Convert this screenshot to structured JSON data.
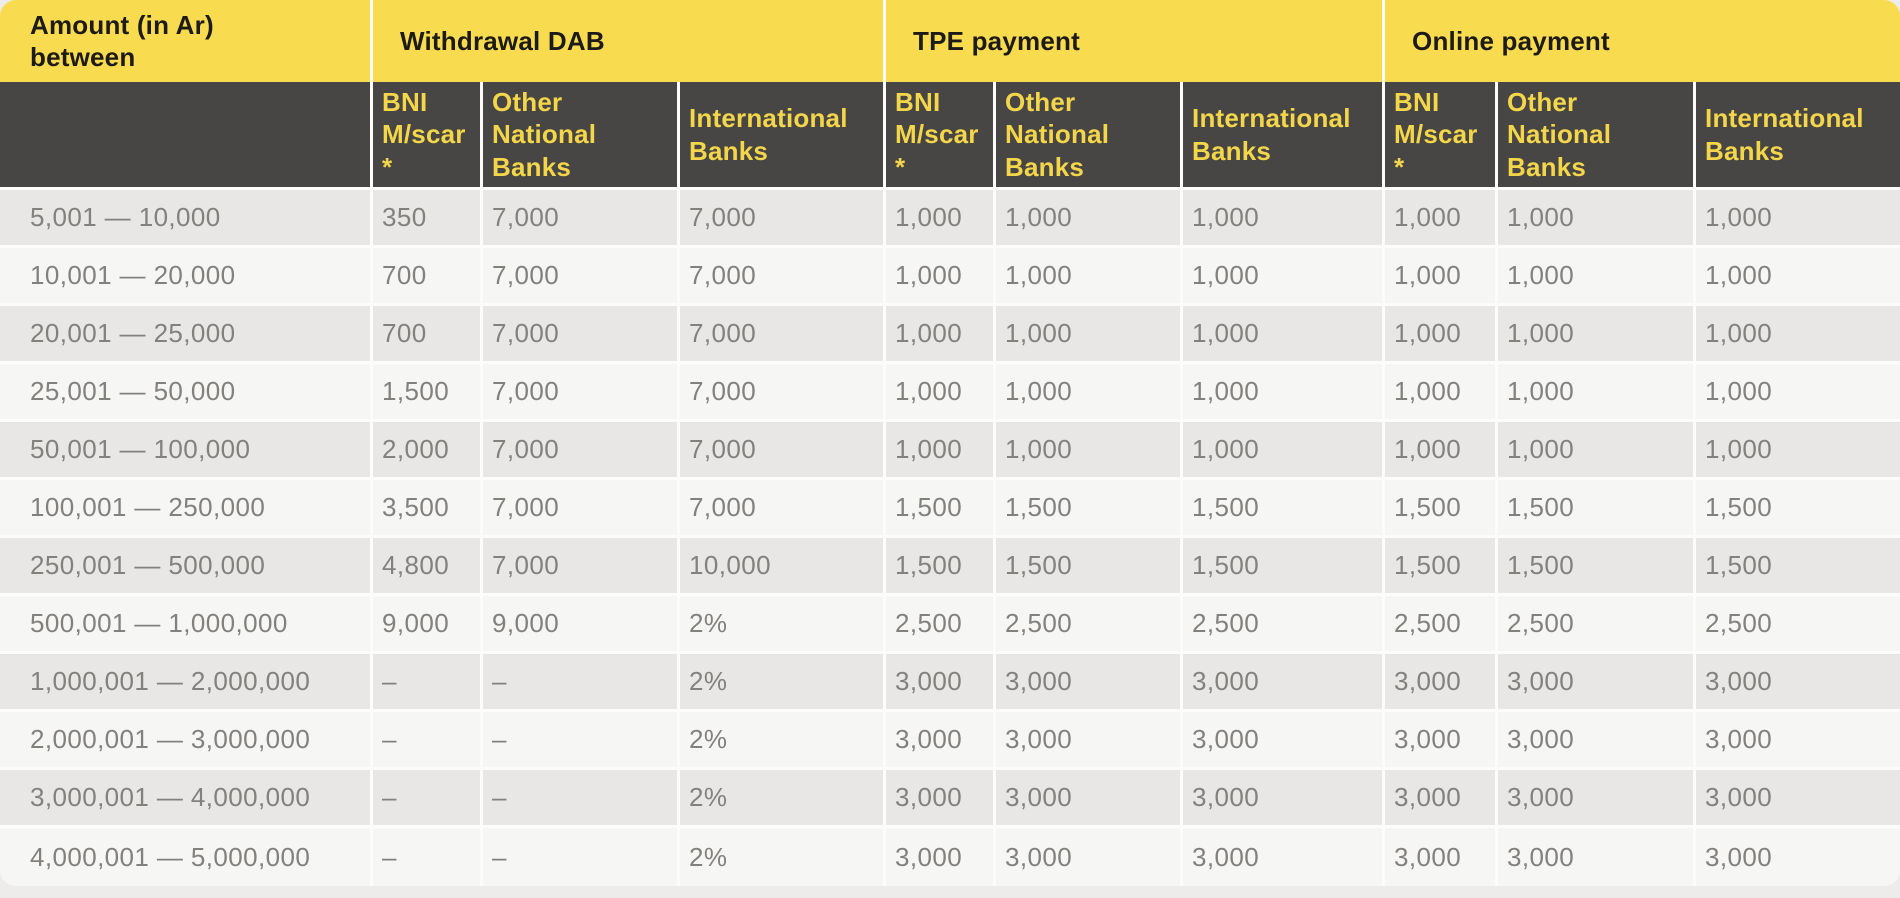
{
  "colors": {
    "header_yellow": "#F9DB4F",
    "header_dark": "#484644",
    "header_dark_text": "#F4D64B",
    "header_yellow_text": "#1C1B18",
    "row_odd_bg": "#E8E7E6",
    "row_even_bg": "#F6F6F5",
    "cell_text": "#83817E",
    "separator": "#FCFCFB",
    "page_background": "#EDECEB"
  },
  "header": {
    "amount_label": "Amount (in Ar) between",
    "groups": [
      {
        "label": "Withdrawal DAB",
        "columns": [
          "BNI M/scar *",
          "Other National Banks",
          "International Banks"
        ]
      },
      {
        "label": "TPE payment",
        "columns": [
          "BNI M/scar *",
          "Other National Banks",
          "International Banks"
        ]
      },
      {
        "label": "Online payment",
        "columns": [
          "BNI M/scar *",
          "Other National Banks",
          "International Banks"
        ]
      }
    ]
  },
  "rows": [
    {
      "range": "5,001 — 10,000",
      "values": [
        "350",
        "7,000",
        "7,000",
        "1,000",
        "1,000",
        "1,000",
        "1,000",
        "1,000",
        "1,000"
      ]
    },
    {
      "range": "10,001 — 20,000",
      "values": [
        "700",
        "7,000",
        "7,000",
        "1,000",
        "1,000",
        "1,000",
        "1,000",
        "1,000",
        "1,000"
      ]
    },
    {
      "range": "20,001 — 25,000",
      "values": [
        "700",
        "7,000",
        "7,000",
        "1,000",
        "1,000",
        "1,000",
        "1,000",
        "1,000",
        "1,000"
      ]
    },
    {
      "range": "25,001 — 50,000",
      "values": [
        "1,500",
        "7,000",
        "7,000",
        "1,000",
        "1,000",
        "1,000",
        "1,000",
        "1,000",
        "1,000"
      ]
    },
    {
      "range": "50,001 — 100,000",
      "values": [
        "2,000",
        "7,000",
        "7,000",
        "1,000",
        "1,000",
        "1,000",
        "1,000",
        "1,000",
        "1,000"
      ]
    },
    {
      "range": "100,001 — 250,000",
      "values": [
        "3,500",
        "7,000",
        "7,000",
        "1,500",
        "1,500",
        "1,500",
        "1,500",
        "1,500",
        "1,500"
      ]
    },
    {
      "range": "250,001 — 500,000",
      "values": [
        "4,800",
        "7,000",
        "10,000",
        "1,500",
        "1,500",
        "1,500",
        "1,500",
        "1,500",
        "1,500"
      ]
    },
    {
      "range": "500,001 — 1,000,000",
      "values": [
        "9,000",
        "9,000",
        "2%",
        "2,500",
        "2,500",
        "2,500",
        "2,500",
        "2,500",
        "2,500"
      ]
    },
    {
      "range": "1,000,001 — 2,000,000",
      "values": [
        "–",
        "–",
        "2%",
        "3,000",
        "3,000",
        "3,000",
        "3,000",
        "3,000",
        "3,000"
      ]
    },
    {
      "range": "2,000,001 — 3,000,000",
      "values": [
        "–",
        "–",
        "2%",
        "3,000",
        "3,000",
        "3,000",
        "3,000",
        "3,000",
        "3,000"
      ]
    },
    {
      "range": "3,000,001 — 4,000,000",
      "values": [
        "–",
        "–",
        "2%",
        "3,000",
        "3,000",
        "3,000",
        "3,000",
        "3,000",
        "3,000"
      ]
    },
    {
      "range": "4,000,001 — 5,000,000",
      "values": [
        "–",
        "–",
        "2%",
        "3,000",
        "3,000",
        "3,000",
        "3,000",
        "3,000",
        "3,000"
      ]
    }
  ]
}
